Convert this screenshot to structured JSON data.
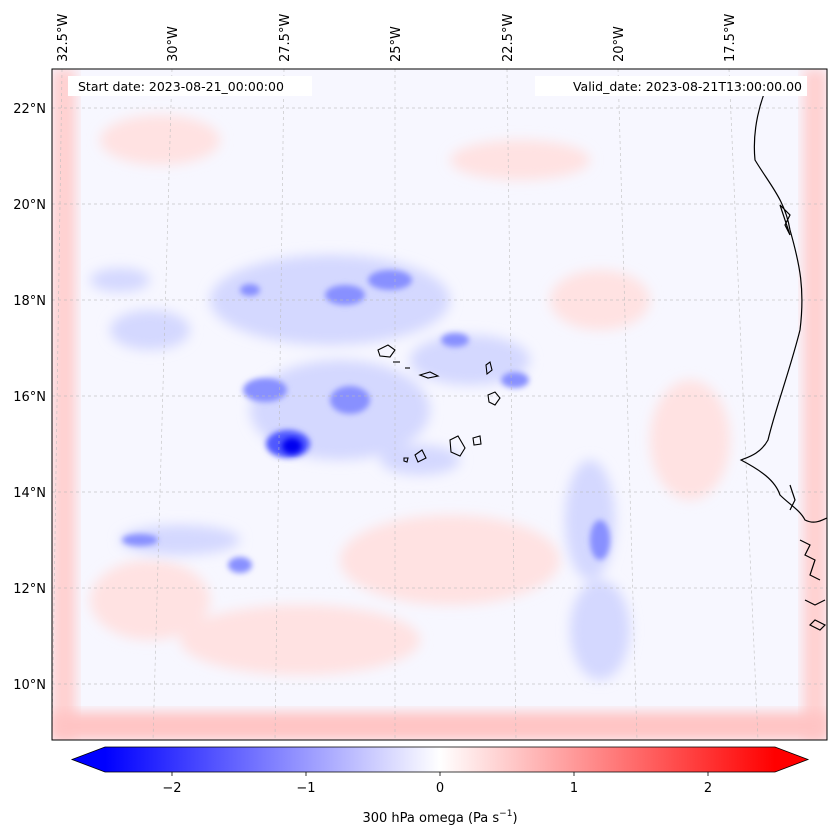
{
  "header": {
    "start_date": "Start date: 2023-08-21_00:00:00",
    "valid_date": "Valid_date: 2023-08-21T13:00:00.00"
  },
  "longitude_labels": [
    "32.5°W",
    "30°W",
    "27.5°W",
    "25°W",
    "22.5°W",
    "20°W",
    "17.5°W"
  ],
  "latitude_labels": [
    "22°N",
    "20°N",
    "18°N",
    "16°N",
    "14°N",
    "12°N",
    "10°N"
  ],
  "colorbar": {
    "ticks": [
      "−2",
      "−1",
      "0",
      "1",
      "2"
    ],
    "label": "300 hPa omega (Pa s",
    "label_sup": "−1",
    "label_close": ")",
    "min": -2.6,
    "max": 2.6,
    "colors": {
      "negative": "#0000ff",
      "zero": "#ffffff",
      "positive": "#ff0000"
    }
  },
  "chart_data": {
    "type": "heatmap",
    "title": "",
    "variable": "300 hPa omega (Pa s−1)",
    "lon_ticks": [
      -32.5,
      -30,
      -27.5,
      -25,
      -22.5,
      -20,
      -17.5
    ],
    "lat_ticks": [
      22,
      20,
      18,
      16,
      14,
      12,
      10
    ],
    "value_range": [
      -2.6,
      2.6
    ],
    "notable_minimum": {
      "lon": -26.7,
      "lat": 14.9,
      "value": -2.6
    }
  }
}
